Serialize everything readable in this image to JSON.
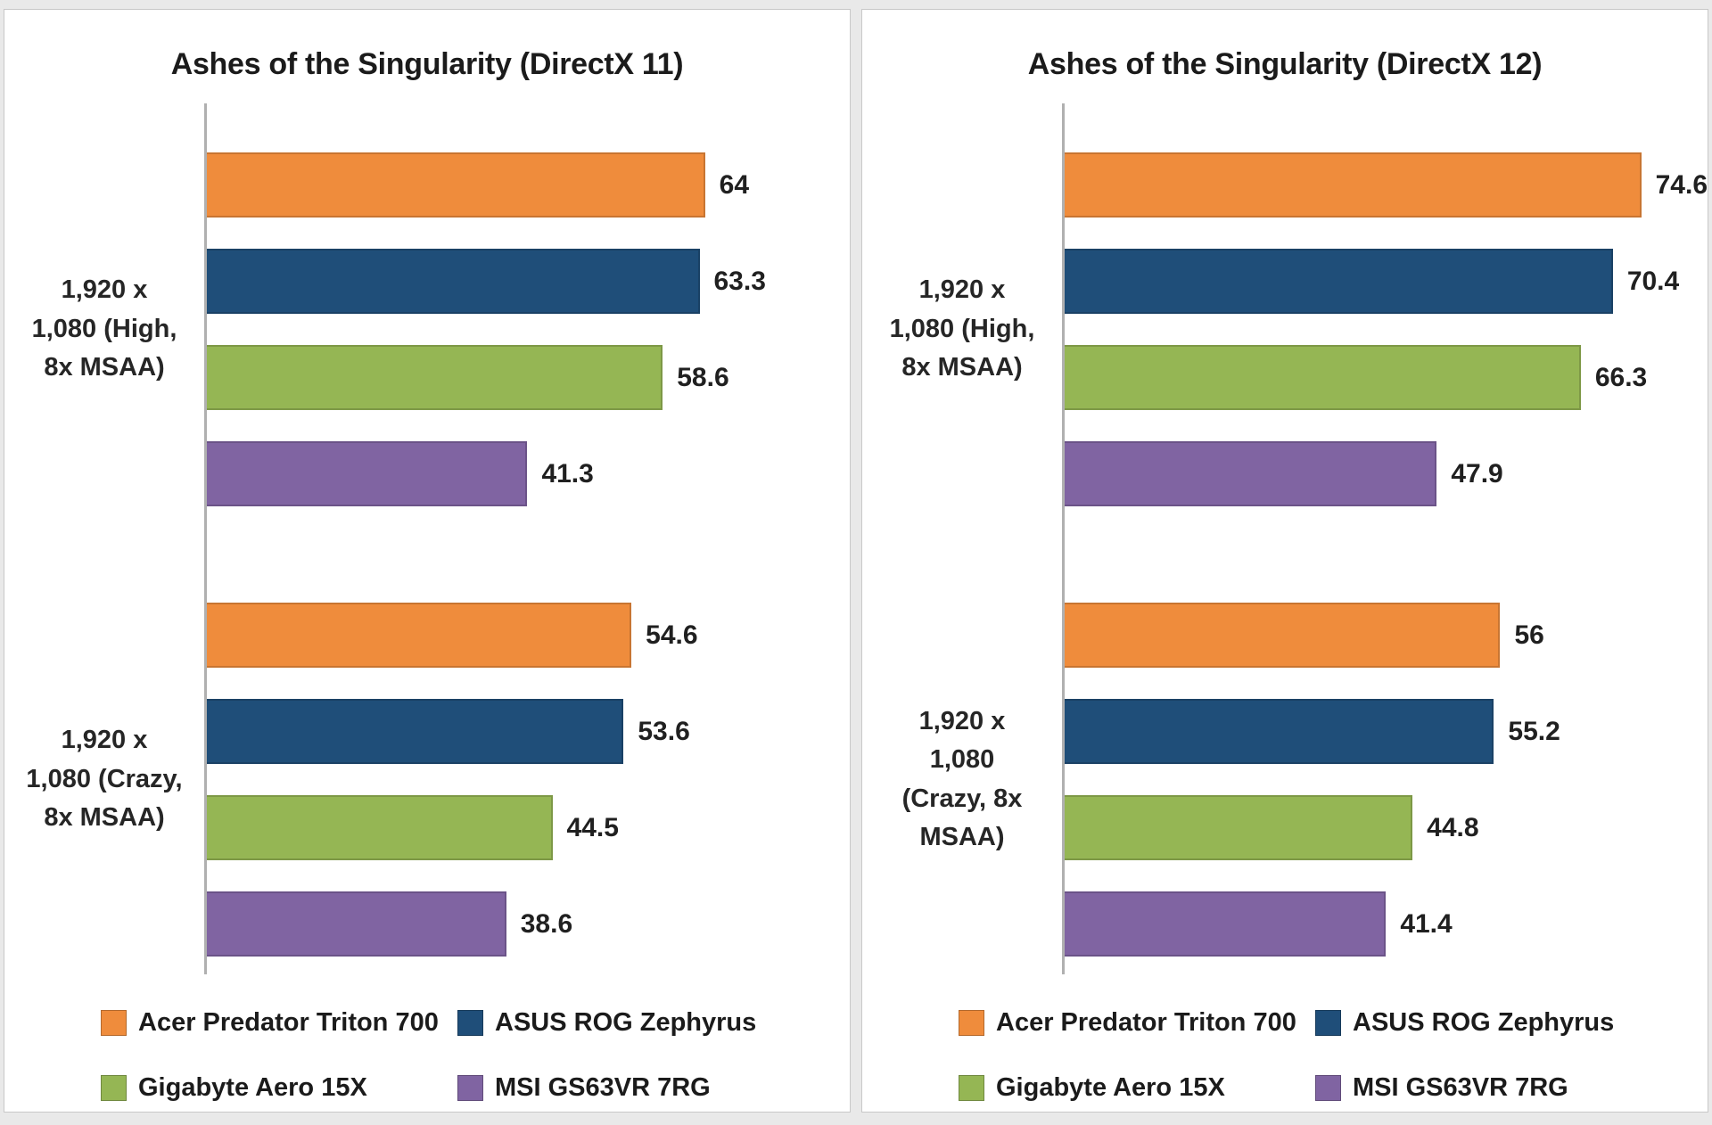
{
  "chart_data": [
    {
      "type": "bar",
      "orientation": "horizontal",
      "title": "Ashes of the Singularity (DirectX 11)",
      "categories": [
        "1,920 x\n1,080 (High,\n8x MSAA)",
        "1,920 x\n1,080 (Crazy,\n8x MSAA)"
      ],
      "series": [
        {
          "name": "Acer Predator Triton 700",
          "color": "#EF8C3C",
          "values": [
            64,
            54.6
          ]
        },
        {
          "name": "ASUS ROG Zephyrus",
          "color": "#1F4E79",
          "values": [
            63.3,
            53.6
          ]
        },
        {
          "name": "Gigabyte Aero 15X",
          "color": "#95B654",
          "values": [
            58.6,
            44.5
          ]
        },
        {
          "name": "MSI GS63VR 7RG",
          "color": "#8064A2",
          "values": [
            41.3,
            38.6
          ]
        }
      ],
      "xlim": [
        0,
        82.5
      ],
      "grid": false,
      "value_labels": true,
      "legend_position": "bottom"
    },
    {
      "type": "bar",
      "orientation": "horizontal",
      "title": "Ashes of the Singularity (DirectX 12)",
      "categories": [
        "1,920 x\n1,080 (High,\n8x MSAA)",
        "1,920 x\n1,080\n(Crazy, 8x\nMSAA)"
      ],
      "series": [
        {
          "name": "Acer Predator Triton 700",
          "color": "#EF8C3C",
          "values": [
            74.6,
            56
          ]
        },
        {
          "name": "ASUS ROG Zephyrus",
          "color": "#1F4E79",
          "values": [
            70.4,
            55.2
          ]
        },
        {
          "name": "Gigabyte Aero 15X",
          "color": "#95B654",
          "values": [
            66.3,
            44.8
          ]
        },
        {
          "name": "MSI GS63VR 7RG",
          "color": "#8064A2",
          "values": [
            47.9,
            41.4
          ]
        }
      ],
      "xlim": [
        0,
        82.5
      ],
      "grid": false,
      "value_labels": true,
      "legend_position": "bottom"
    }
  ]
}
